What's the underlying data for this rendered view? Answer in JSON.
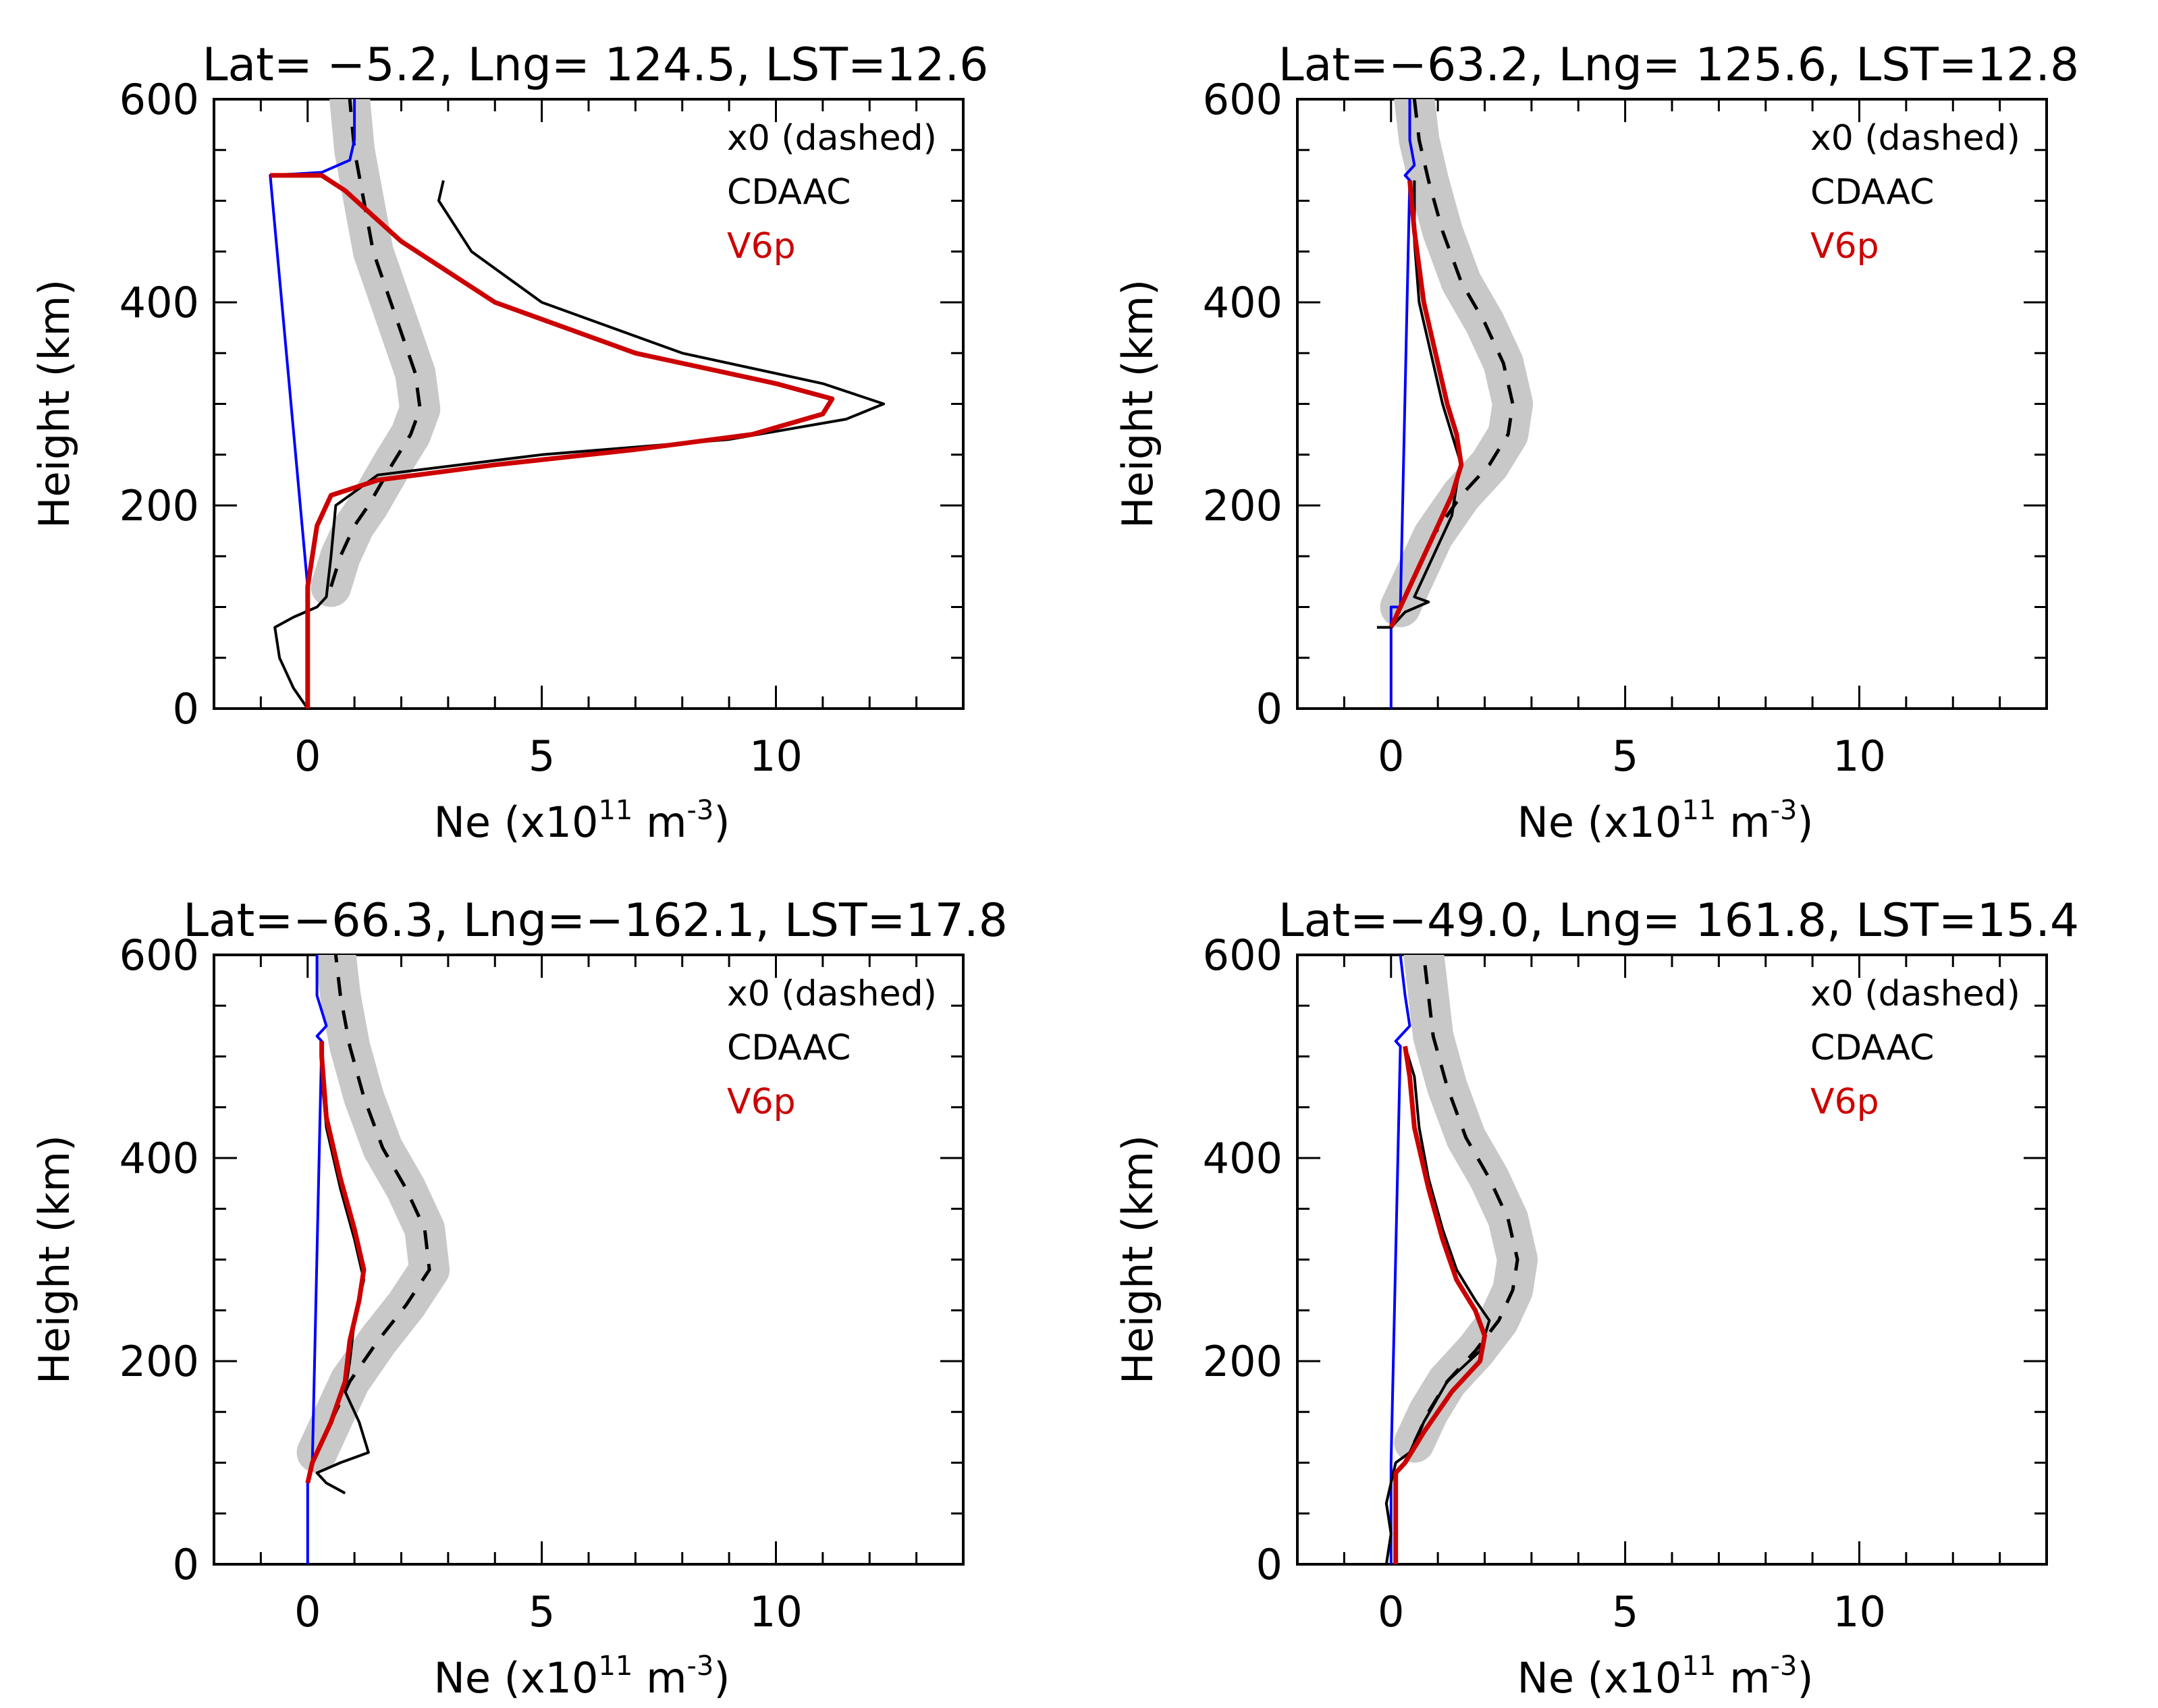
{
  "figure": {
    "legend": {
      "entries": [
        {
          "label": "x0 (dashed)",
          "color": "#000000"
        },
        {
          "label": "CDAAC",
          "color": "#000000"
        },
        {
          "label": "V6p",
          "color": "#cc0000"
        }
      ]
    },
    "axis": {
      "ylabel": "Height (km)",
      "xlabel_prefix": "Ne (x10",
      "xlabel_exp1": "11",
      "xlabel_mid": " m",
      "xlabel_exp2": "-3",
      "xlabel_suffix": ")",
      "xticks": [
        "0",
        "5",
        "10"
      ],
      "yticks": [
        "0",
        "200",
        "400",
        "600"
      ]
    },
    "colors": {
      "x0": "#000000",
      "x0_band": "#c8c8c8",
      "cdaac": "#000000",
      "v6p": "#cc0000",
      "blue": "#0000ff"
    }
  },
  "chart_data": [
    {
      "type": "line",
      "title": "Lat= −5.2, Lng= 124.5, LST=12.6",
      "xlabel": "Ne (x10^11 m^-3)",
      "ylabel": "Height (km)",
      "xlim": [
        -2,
        14
      ],
      "ylim": [
        0,
        600
      ],
      "series": [
        {
          "name": "x0 (dashed)",
          "style": "dashed-with-gray-band",
          "points": [
            [
              0.5,
              120
            ],
            [
              0.7,
              150
            ],
            [
              1.0,
              180
            ],
            [
              1.3,
              200
            ],
            [
              1.8,
              240
            ],
            [
              2.2,
              270
            ],
            [
              2.4,
              295
            ],
            [
              2.3,
              330
            ],
            [
              2.0,
              370
            ],
            [
              1.7,
              410
            ],
            [
              1.4,
              450
            ],
            [
              1.2,
              500
            ],
            [
              1.0,
              550
            ],
            [
              0.9,
              600
            ]
          ]
        },
        {
          "name": "CDAAC",
          "points": [
            [
              0.0,
              0
            ],
            [
              -0.3,
              20
            ],
            [
              -0.6,
              50
            ],
            [
              -0.7,
              80
            ],
            [
              -0.3,
              90
            ],
            [
              0.2,
              100
            ],
            [
              0.4,
              110
            ],
            [
              0.5,
              150
            ],
            [
              0.6,
              200
            ],
            [
              1.5,
              230
            ],
            [
              5,
              250
            ],
            [
              9,
              265
            ],
            [
              11.5,
              285
            ],
            [
              12.3,
              300
            ],
            [
              11,
              320
            ],
            [
              8,
              350
            ],
            [
              5,
              400
            ],
            [
              3.5,
              450
            ],
            [
              2.8,
              500
            ],
            [
              2.9,
              520
            ]
          ]
        },
        {
          "name": "V6p",
          "points": [
            [
              0.0,
              0
            ],
            [
              0.0,
              80
            ],
            [
              0.0,
              120
            ],
            [
              0.2,
              180
            ],
            [
              0.5,
              210
            ],
            [
              1.5,
              225
            ],
            [
              4,
              240
            ],
            [
              7,
              255
            ],
            [
              9.5,
              270
            ],
            [
              11,
              290
            ],
            [
              11.2,
              305
            ],
            [
              10,
              320
            ],
            [
              7,
              350
            ],
            [
              4,
              400
            ],
            [
              2,
              460
            ],
            [
              0.8,
              510
            ],
            [
              0.3,
              525
            ],
            [
              -0.8,
              525
            ]
          ]
        },
        {
          "name": "",
          "color": "blue",
          "points": [
            [
              0.0,
              0
            ],
            [
              0.0,
              80
            ],
            [
              0.0,
              100
            ],
            [
              0.0,
              120
            ],
            [
              -0.8,
              525
            ],
            [
              0.3,
              528
            ],
            [
              0.9,
              540
            ],
            [
              1.0,
              560
            ],
            [
              1.0,
              600
            ]
          ]
        }
      ]
    },
    {
      "type": "line",
      "title": "Lat=−63.2, Lng= 125.6, LST=12.8",
      "xlabel": "Ne (x10^11 m^-3)",
      "ylabel": "Height (km)",
      "xlim": [
        -2,
        14
      ],
      "ylim": [
        0,
        600
      ],
      "series": [
        {
          "name": "x0 (dashed)",
          "style": "dashed-with-gray-band",
          "points": [
            [
              0.2,
              100
            ],
            [
              0.5,
              130
            ],
            [
              0.9,
              170
            ],
            [
              1.5,
              210
            ],
            [
              2.1,
              240
            ],
            [
              2.5,
              270
            ],
            [
              2.6,
              300
            ],
            [
              2.4,
              340
            ],
            [
              2.0,
              380
            ],
            [
              1.5,
              420
            ],
            [
              1.1,
              470
            ],
            [
              0.8,
              520
            ],
            [
              0.6,
              560
            ],
            [
              0.5,
              600
            ]
          ]
        },
        {
          "name": "CDAAC",
          "points": [
            [
              -0.3,
              80
            ],
            [
              0.0,
              80
            ],
            [
              0.3,
              95
            ],
            [
              0.8,
              105
            ],
            [
              0.5,
              110
            ],
            [
              0.7,
              130
            ],
            [
              1.0,
              160
            ],
            [
              1.3,
              190
            ],
            [
              1.4,
              220
            ],
            [
              1.5,
              240
            ],
            [
              1.3,
              270
            ],
            [
              1.1,
              300
            ],
            [
              0.9,
              340
            ],
            [
              0.6,
              400
            ],
            [
              0.5,
              460
            ],
            [
              0.5,
              520
            ]
          ]
        },
        {
          "name": "V6p",
          "points": [
            [
              0.0,
              80
            ],
            [
              0.2,
              100
            ],
            [
              0.5,
              130
            ],
            [
              0.9,
              170
            ],
            [
              1.3,
              210
            ],
            [
              1.5,
              240
            ],
            [
              1.4,
              270
            ],
            [
              1.2,
              300
            ],
            [
              1.0,
              340
            ],
            [
              0.7,
              400
            ],
            [
              0.5,
              470
            ],
            [
              0.4,
              520
            ]
          ]
        },
        {
          "name": "",
          "color": "blue",
          "points": [
            [
              0.0,
              0
            ],
            [
              0.0,
              50
            ],
            [
              0.0,
              80
            ],
            [
              0.0,
              100
            ],
            [
              0.2,
              100
            ],
            [
              0.4,
              520
            ],
            [
              0.3,
              525
            ],
            [
              0.5,
              535
            ],
            [
              0.4,
              560
            ],
            [
              0.4,
              600
            ]
          ]
        }
      ]
    },
    {
      "type": "line",
      "title": "Lat=−66.3, Lng=−162.1, LST=17.8",
      "xlabel": "Ne (x10^11 m^-3)",
      "ylabel": "Height (km)",
      "xlim": [
        -2,
        14
      ],
      "ylim": [
        0,
        600
      ],
      "series": [
        {
          "name": "x0 (dashed)",
          "style": "dashed-with-gray-band",
          "points": [
            [
              0.2,
              110
            ],
            [
              0.5,
              140
            ],
            [
              0.9,
              180
            ],
            [
              1.5,
              220
            ],
            [
              2.1,
              255
            ],
            [
              2.6,
              290
            ],
            [
              2.5,
              330
            ],
            [
              2.1,
              370
            ],
            [
              1.6,
              410
            ],
            [
              1.2,
              460
            ],
            [
              0.9,
              510
            ],
            [
              0.7,
              560
            ],
            [
              0.6,
              600
            ]
          ]
        },
        {
          "name": "CDAAC",
          "points": [
            [
              0.8,
              70
            ],
            [
              0.4,
              80
            ],
            [
              0.2,
              90
            ],
            [
              0.7,
              100
            ],
            [
              1.3,
              110
            ],
            [
              1.1,
              140
            ],
            [
              0.8,
              170
            ],
            [
              0.9,
              200
            ],
            [
              1.0,
              240
            ],
            [
              1.2,
              280
            ],
            [
              1.0,
              320
            ],
            [
              0.7,
              370
            ],
            [
              0.4,
              430
            ],
            [
              0.3,
              480
            ],
            [
              0.3,
              510
            ]
          ]
        },
        {
          "name": "V6p",
          "points": [
            [
              0.0,
              80
            ],
            [
              0.1,
              100
            ],
            [
              0.5,
              140
            ],
            [
              0.8,
              180
            ],
            [
              0.9,
              220
            ],
            [
              1.1,
              260
            ],
            [
              1.2,
              290
            ],
            [
              1.0,
              330
            ],
            [
              0.7,
              380
            ],
            [
              0.4,
              440
            ],
            [
              0.3,
              500
            ],
            [
              0.3,
              515
            ]
          ]
        },
        {
          "name": "",
          "color": "blue",
          "points": [
            [
              0.0,
              0
            ],
            [
              0.0,
              50
            ],
            [
              0.0,
              80
            ],
            [
              0.1,
              100
            ],
            [
              0.3,
              515
            ],
            [
              0.2,
              520
            ],
            [
              0.4,
              530
            ],
            [
              0.2,
              560
            ],
            [
              0.2,
              600
            ]
          ]
        }
      ]
    },
    {
      "type": "line",
      "title": "Lat=−49.0, Lng= 161.8, LST=15.4",
      "xlabel": "Ne (x10^11 m^-3)",
      "ylabel": "Height (km)",
      "xlim": [
        -2,
        14
      ],
      "ylim": [
        0,
        600
      ],
      "series": [
        {
          "name": "x0 (dashed)",
          "style": "dashed-with-gray-band",
          "points": [
            [
              0.5,
              120
            ],
            [
              0.8,
              150
            ],
            [
              1.2,
              180
            ],
            [
              1.8,
              210
            ],
            [
              2.3,
              240
            ],
            [
              2.6,
              270
            ],
            [
              2.7,
              300
            ],
            [
              2.5,
              340
            ],
            [
              2.1,
              380
            ],
            [
              1.6,
              420
            ],
            [
              1.2,
              470
            ],
            [
              0.9,
              520
            ],
            [
              0.8,
              560
            ],
            [
              0.7,
              600
            ]
          ]
        },
        {
          "name": "CDAAC",
          "points": [
            [
              -0.1,
              0
            ],
            [
              0.0,
              30
            ],
            [
              -0.1,
              60
            ],
            [
              0.1,
              100
            ],
            [
              0.4,
              110
            ],
            [
              0.7,
              140
            ],
            [
              1.2,
              180
            ],
            [
              1.9,
              210
            ],
            [
              2.1,
              240
            ],
            [
              1.8,
              260
            ],
            [
              1.4,
              290
            ],
            [
              1.1,
              330
            ],
            [
              0.8,
              380
            ],
            [
              0.6,
              430
            ],
            [
              0.5,
              480
            ],
            [
              0.3,
              510
            ]
          ]
        },
        {
          "name": "V6p",
          "points": [
            [
              0.1,
              0
            ],
            [
              0.1,
              50
            ],
            [
              0.1,
              90
            ],
            [
              0.3,
              100
            ],
            [
              0.7,
              130
            ],
            [
              1.3,
              170
            ],
            [
              1.9,
              200
            ],
            [
              2.0,
              225
            ],
            [
              1.8,
              250
            ],
            [
              1.4,
              280
            ],
            [
              1.1,
              320
            ],
            [
              0.8,
              370
            ],
            [
              0.5,
              430
            ],
            [
              0.4,
              480
            ],
            [
              0.3,
              510
            ]
          ]
        },
        {
          "name": "",
          "color": "blue",
          "points": [
            [
              0.0,
              0
            ],
            [
              0.0,
              50
            ],
            [
              0.0,
              90
            ],
            [
              0.0,
              100
            ],
            [
              0.2,
              510
            ],
            [
              0.1,
              515
            ],
            [
              0.4,
              530
            ],
            [
              0.3,
              560
            ],
            [
              0.2,
              600
            ]
          ]
        }
      ]
    }
  ]
}
